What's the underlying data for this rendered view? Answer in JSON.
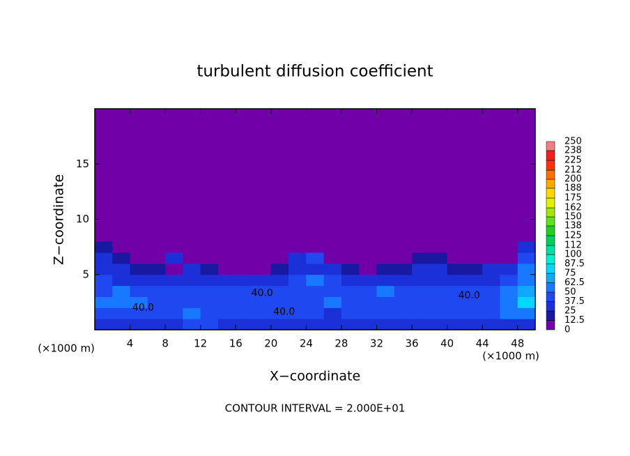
{
  "chart_data": {
    "type": "heatmap",
    "title": "turbulent diffusion coefficient",
    "x_label": "X−coordinate",
    "y_label": "Z−coordinate",
    "x_unit": "(×1000 m)",
    "y_unit": "(×1000 m)",
    "note": "CONTOUR INTERVAL = 2.000E+01",
    "xlim": [
      0,
      50
    ],
    "ylim": [
      0,
      20
    ],
    "xticks": [
      4,
      8,
      12,
      16,
      20,
      24,
      28,
      32,
      36,
      40,
      44,
      48
    ],
    "yticks": [
      5,
      10,
      15
    ],
    "x_edges": [
      0,
      2,
      4,
      6,
      8,
      10,
      12,
      14,
      16,
      18,
      20,
      22,
      24,
      26,
      28,
      30,
      32,
      34,
      36,
      38,
      40,
      42,
      44,
      46,
      48,
      50
    ],
    "z_edges": [
      0,
      1,
      2,
      3,
      4,
      5,
      6,
      7,
      8,
      20
    ],
    "z": [
      [
        30,
        28,
        25,
        30,
        35,
        40,
        38,
        30,
        32,
        35,
        30,
        28,
        25,
        30,
        35,
        28,
        25,
        30,
        32,
        35,
        30,
        28,
        30,
        35,
        30
      ],
      [
        40,
        42,
        45,
        40,
        38,
        55,
        48,
        42,
        40,
        45,
        42,
        38,
        40,
        35,
        42,
        40,
        38,
        42,
        40,
        38,
        40,
        42,
        38,
        55,
        60
      ],
      [
        55,
        60,
        50,
        45,
        40,
        45,
        42,
        38,
        40,
        42,
        45,
        40,
        38,
        50,
        45,
        42,
        40,
        45,
        42,
        40,
        45,
        40,
        48,
        55,
        75
      ],
      [
        45,
        50,
        42,
        38,
        40,
        42,
        40,
        42,
        45,
        40,
        45,
        48,
        42,
        38,
        40,
        42,
        55,
        45,
        40,
        42,
        40,
        38,
        42,
        50,
        65
      ],
      [
        40,
        35,
        30,
        28,
        25,
        35,
        28,
        25,
        30,
        28,
        32,
        45,
        50,
        40,
        28,
        25,
        30,
        32,
        35,
        30,
        28,
        25,
        30,
        45,
        60
      ],
      [
        35,
        25,
        20,
        15,
        10,
        25,
        15,
        10,
        12,
        10,
        15,
        30,
        35,
        25,
        15,
        12,
        20,
        22,
        28,
        25,
        20,
        15,
        25,
        30,
        55
      ],
      [
        30,
        15,
        5,
        5,
        35,
        10,
        3,
        2,
        2,
        2,
        5,
        35,
        40,
        5,
        2,
        2,
        3,
        5,
        20,
        20,
        12,
        3,
        5,
        10,
        45
      ],
      [
        20,
        0,
        0,
        0,
        5,
        0,
        0,
        0,
        0,
        0,
        0,
        10,
        5,
        0,
        0,
        0,
        0,
        0,
        5,
        5,
        0,
        0,
        0,
        0,
        25
      ],
      [
        0,
        0,
        0,
        0,
        0,
        0,
        0,
        0,
        0,
        0,
        0,
        0,
        0,
        0,
        0,
        0,
        0,
        0,
        0,
        0,
        0,
        0,
        0,
        0,
        0
      ]
    ],
    "levels": [
      0,
      12.5,
      25,
      37.5,
      50,
      62.5,
      75,
      87.5,
      100,
      112,
      125,
      138,
      150,
      162,
      175,
      188,
      200,
      212,
      225,
      238,
      250
    ],
    "colors": [
      "#7000a8",
      "#1818a0",
      "#1c30d8",
      "#2048f0",
      "#1878ff",
      "#10a8ff",
      "#00d8ff",
      "#00f0d0",
      "#00e0a0",
      "#00d060",
      "#20d020",
      "#60e020",
      "#a0e800",
      "#e0f000",
      "#ffd800",
      "#ffa800",
      "#ff7000",
      "#ff3010",
      "#f02020",
      "#f08080"
    ],
    "contour_labels": [
      {
        "text": "40.0",
        "x": 19,
        "z": 3.3
      },
      {
        "text": "40.0",
        "x": 21.5,
        "z": 1.6
      },
      {
        "text": "40.0",
        "x": 42.5,
        "z": 3.1
      },
      {
        "text": "40.0",
        "x": 5.5,
        "z": 2.0
      }
    ]
  }
}
